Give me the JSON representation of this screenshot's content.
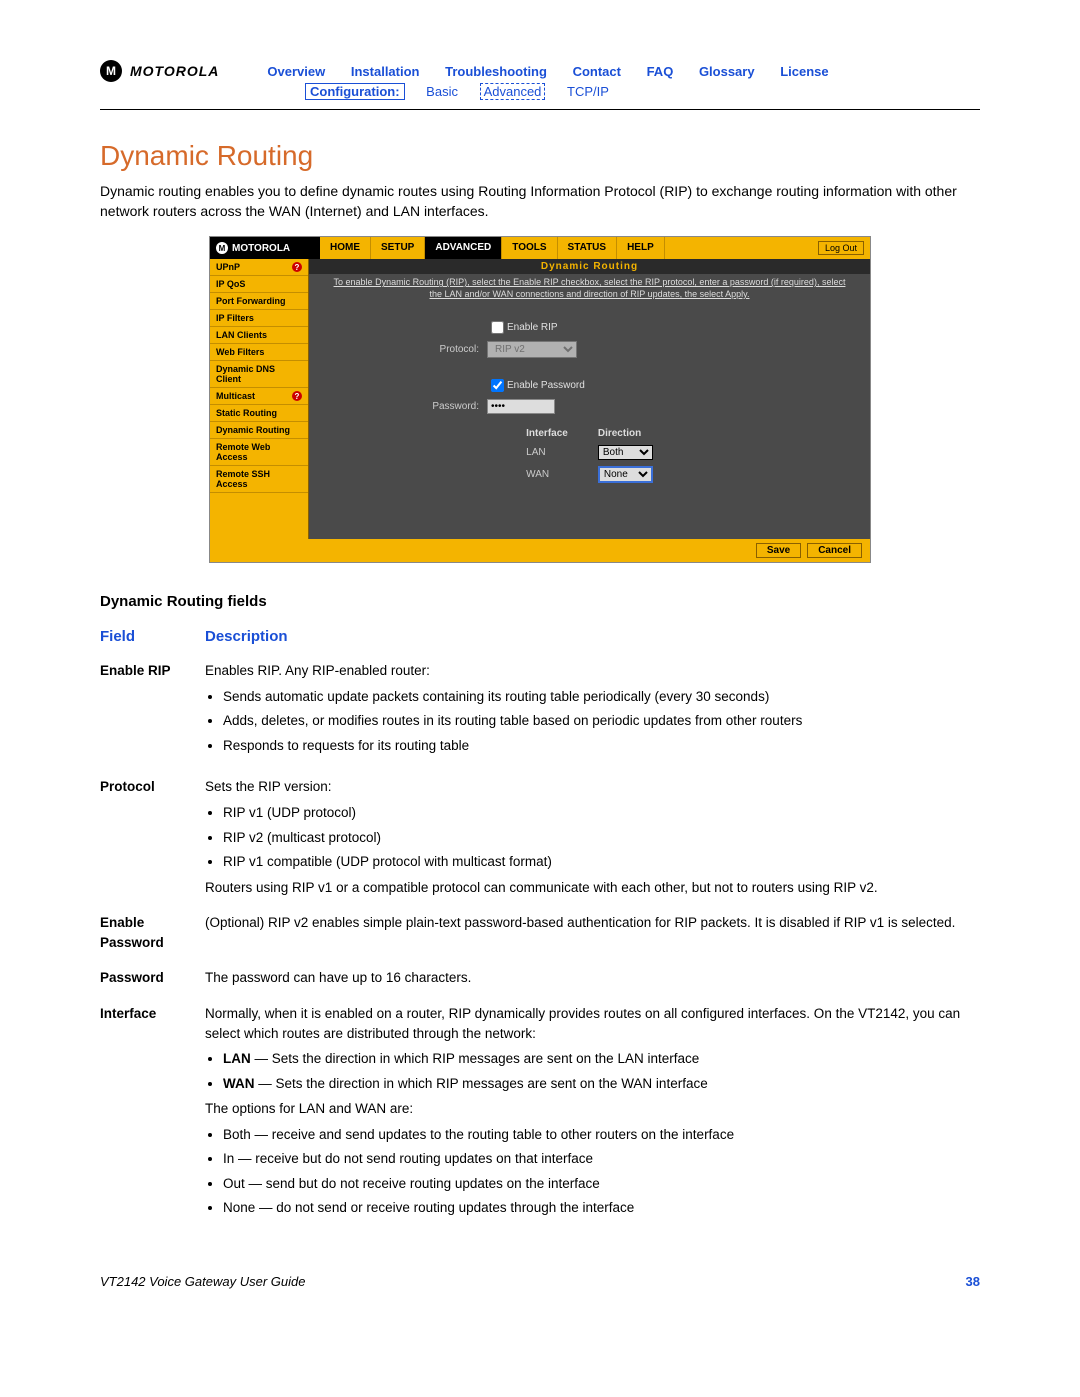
{
  "header": {
    "brand": "MOTOROLA",
    "nav": [
      "Overview",
      "Installation",
      "Troubleshooting",
      "Contact",
      "FAQ",
      "Glossary",
      "License"
    ],
    "sub_label": "Configuration:",
    "sub_items": [
      "Basic",
      "Advanced",
      "TCP/IP"
    ],
    "sub_selected_index": 1
  },
  "page_title": "Dynamic Routing",
  "intro": "Dynamic routing enables you to define dynamic routes using Routing Information Protocol (RIP) to exchange routing information with other network routers across the WAN (Internet) and LAN interfaces.",
  "ui": {
    "brand": "MOTOROLA",
    "tabs": [
      "HOME",
      "SETUP",
      "ADVANCED",
      "TOOLS",
      "STATUS",
      "HELP"
    ],
    "active_tab_index": 2,
    "logout": "Log Out",
    "side_items": [
      {
        "label": "UPnP",
        "help": true
      },
      {
        "label": "IP QoS",
        "help": false
      },
      {
        "label": "Port Forwarding",
        "help": false
      },
      {
        "label": "IP Filters",
        "help": false
      },
      {
        "label": "LAN Clients",
        "help": false
      },
      {
        "label": "Web Filters",
        "help": false
      },
      {
        "label": "Dynamic DNS Client",
        "help": false
      },
      {
        "label": "Multicast",
        "help": true
      },
      {
        "label": "Static Routing",
        "help": false
      },
      {
        "label": "Dynamic Routing",
        "help": false
      },
      {
        "label": "Remote Web Access",
        "help": false
      },
      {
        "label": "Remote SSH Access",
        "help": false
      }
    ],
    "panel_title": "Dynamic Routing",
    "help_text": "To enable Dynamic Routing (RIP), select the Enable RIP checkbox, select the RIP protocol, enter a password (if required), select the LAN and/or WAN connections and direction of RIP updates, the select Apply.",
    "form": {
      "enable_rip_label": "Enable RIP",
      "enable_rip_checked": false,
      "protocol_label": "Protocol:",
      "protocol_value": "RIP v2",
      "enable_pw_label": "Enable Password",
      "enable_pw_checked": true,
      "password_label": "Password:",
      "password_value": "••••"
    },
    "iface_table": {
      "headers": [
        "Interface",
        "Direction"
      ],
      "rows": [
        {
          "iface": "LAN",
          "dir": "Both"
        },
        {
          "iface": "WAN",
          "dir": "None"
        }
      ]
    },
    "buttons": {
      "save": "Save",
      "cancel": "Cancel"
    }
  },
  "fields_heading": "Dynamic Routing fields",
  "fields_table": {
    "col_field": "Field",
    "col_desc": "Description",
    "rows": {
      "enable_rip": {
        "name": "Enable RIP",
        "lead": "Enables RIP. Any RIP-enabled router:",
        "bullets": [
          "Sends automatic update packets containing its routing table periodically (every 30 seconds)",
          "Adds, deletes, or modifies routes in its routing table based on periodic updates from other routers",
          "Responds to requests for its routing table"
        ]
      },
      "protocol": {
        "name": "Protocol",
        "lead": "Sets the RIP version:",
        "bullets": [
          "RIP v1 (UDP protocol)",
          "RIP v2 (multicast protocol)",
          "RIP v1 compatible (UDP protocol with multicast format)"
        ],
        "trail": "Routers using RIP v1 or a compatible protocol can communicate with each other, but not to routers using RIP v2."
      },
      "enable_password": {
        "name": "Enable Password",
        "text": "(Optional) RIP v2 enables simple plain-text password-based authentication for RIP packets. It is disabled if RIP v1 is selected."
      },
      "password": {
        "name": "Password",
        "text": "The password can have up to 16 characters."
      },
      "interface": {
        "name": "Interface",
        "lead": "Normally, when it is enabled on a router, RIP dynamically provides routes on all configured interfaces. On the VT2142, you can select which routes are distributed through the network:",
        "bullets1": [
          "<b>LAN</b> — Sets the direction in which RIP messages are sent on the LAN interface",
          "<b>WAN</b> — Sets the direction in which RIP messages are sent on the WAN interface"
        ],
        "mid": "The options for LAN and WAN are:",
        "bullets2": [
          "Both — receive and send updates to the routing table to other routers on the interface",
          "In — receive but do not send routing updates on that interface",
          "Out — send but do not receive routing updates on the interface",
          "None — do not send or receive routing updates through the interface"
        ]
      }
    }
  },
  "footer": {
    "guide": "VT2142 Voice Gateway User Guide",
    "page": "38"
  },
  "colors": {
    "link_blue": "#1a4fd6",
    "title_orange": "#d66a2a",
    "moto_yellow": "#f4b400",
    "panel_gray": "#4a4a4a"
  }
}
